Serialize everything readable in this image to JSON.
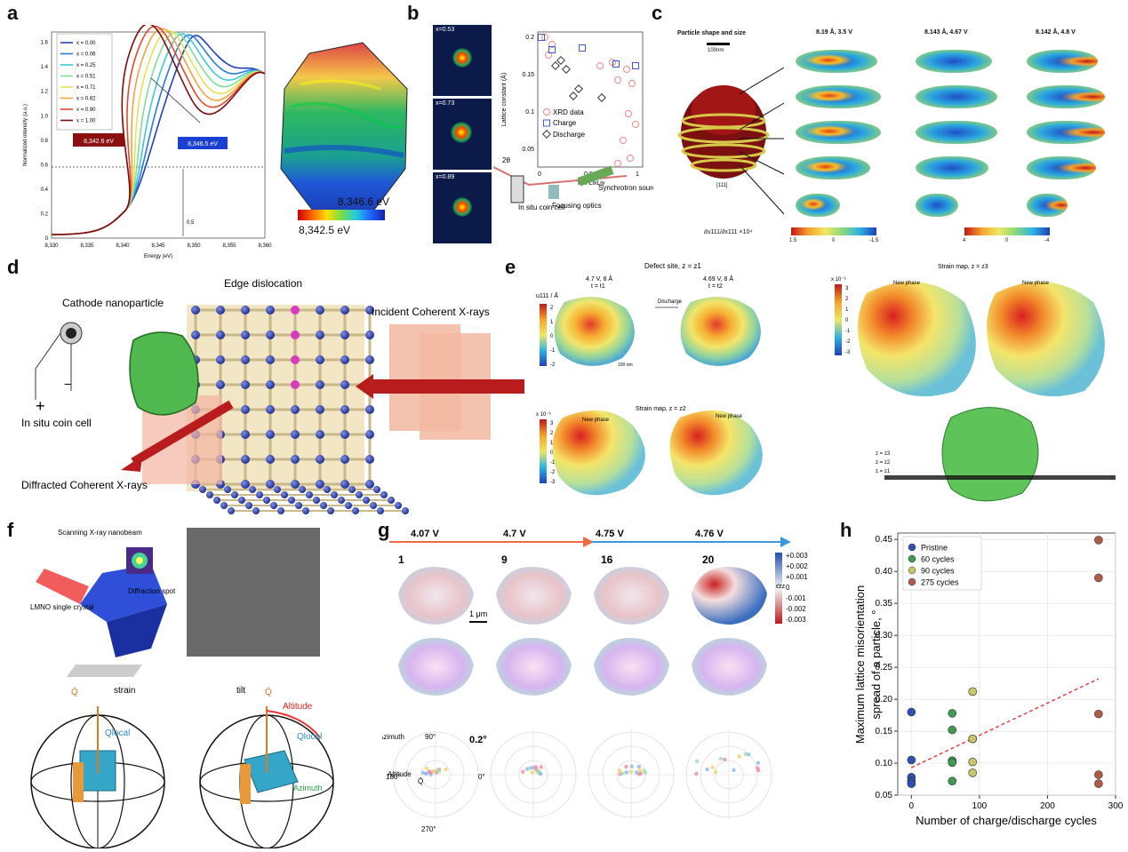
{
  "panel_labels": {
    "a": "a",
    "b": "b",
    "c": "c",
    "d": "d",
    "e": "e",
    "f": "f",
    "g": "g",
    "h": "h"
  },
  "panel_a": {
    "ylabel": "Normalized intensity (a.u.)",
    "xlabel": "Energy (eV)",
    "x_ticks": [
      "8,330",
      "8,335",
      "8,340",
      "8,345",
      "8,350",
      "8,355",
      "8,360"
    ],
    "y_ticks": [
      "0",
      "0.2",
      "0.4",
      "0.6",
      "0.8",
      "1.0",
      "1.2",
      "1.4",
      "1.6"
    ],
    "legend": [
      "x = 0.00",
      "x = 0.06",
      "x = 0.25",
      "x = 0.51",
      "x = 0.71",
      "x = 0.82",
      "x = 0.90",
      "x = 1.00"
    ],
    "legend_colors": [
      "#1f3fbf",
      "#2a7ad8",
      "#3ec8d8",
      "#7fdc9a",
      "#e8e05a",
      "#f2a33c",
      "#e0492c",
      "#7a0c12"
    ],
    "callout_left": "8,342.6 eV",
    "callout_right": "8,346.5 eV",
    "half_label": "0.5",
    "colorbar_max": "8,346.6 eV",
    "colorbar_min": "8,342.5 eV"
  },
  "panel_b": {
    "pattern_labels": [
      "x=0.53",
      "x=0.73",
      "x=0.89"
    ],
    "ylabel": "Lattice constant (Å)",
    "xlabel": "x in LixLiy",
    "y_ticks": [
      "0.05",
      "0.1",
      "0.15",
      "0.2"
    ],
    "x_ticks": [
      "0",
      "0.5",
      "1"
    ],
    "legend": [
      "XRD data",
      "Charge",
      "Discharge"
    ],
    "two_theta": "2θ",
    "coin_cell": "In situ coin cell",
    "focusing": "Focusing optics",
    "source": "Synchrotron source"
  },
  "panel_c": {
    "shape_title": "Particle shape and size",
    "scale": "100nm",
    "direction": "[111]",
    "col_titles": [
      "8.19 Å, 3.5 V",
      "8.143 Å, 4.67 V",
      "8.142 Å, 4.8 V"
    ],
    "cb_label": "∂u111/∂x111 ×10⁴",
    "cb1": [
      "1.5",
      "0",
      "-1.5"
    ],
    "cb2": [
      "4",
      "0",
      "-4"
    ]
  },
  "panel_d": {
    "cathode": "Cathode nanoparticle",
    "edge": "Edge dislocation",
    "incident": "Incident Coherent X-rays",
    "coin": "In situ coin cell",
    "diffracted": "Diffracted Coherent X-rays"
  },
  "panel_e": {
    "defect_title": "Defect site, z = z1",
    "cond1": "4.7 V, 8 Å",
    "cond1b": "t = t1",
    "cond2": "4.69 V, 8 Å",
    "cond2b": "t = t2",
    "discharge": "Discharge",
    "u_label": "u111 / Å",
    "u_ticks": [
      "2",
      "1",
      "0",
      "-1",
      "-2"
    ],
    "scale": "100 nm",
    "strain_title_1": "Strain map, z = z2",
    "strain_title_2": "Strain map, z = z3",
    "new_phase": "New phase",
    "cb_exp": "x 10⁻³",
    "cb_ticks": [
      "3",
      "2",
      "1",
      "0",
      "-1",
      "-2",
      "-3"
    ],
    "z_labels": [
      "z = z3",
      "z = z2",
      "z = z1"
    ]
  },
  "panel_f": {
    "scanning": "Scanning X-ray nanobeam",
    "diffraction": "Diffraction spot",
    "crystal": "LMNO single crystal",
    "q": "Q̄",
    "strain": "strain",
    "tilt": "tilt",
    "qlocal": "Qlocal",
    "altitude": "Altitude",
    "azimuth": "Azimuth"
  },
  "panel_g": {
    "voltages": [
      "4.07 V",
      "4.7 V",
      "4.75 V",
      "4.76 V"
    ],
    "cycles": [
      "1",
      "9",
      "16",
      "20"
    ],
    "scale": "1 μm",
    "cb_ticks": [
      "+0.003",
      "+0.002",
      "+0.001",
      "0",
      "-0.001",
      "-0.002",
      "-0.003"
    ],
    "cb_symbol": "ε̄zz",
    "polar_angles": [
      "90°",
      "180°",
      "0°",
      "270°"
    ],
    "polar_scale": "0.2°",
    "azimuth": "Azimuth",
    "altitude": "Altitude",
    "q": "Q̄"
  },
  "chart_data": {
    "type": "scatter",
    "xlabel": "Number of charge/discharge cycles",
    "ylabel": "Maximum lattice misorientation spread of a particle, °",
    "xlim": [
      -20,
      300
    ],
    "ylim": [
      0.05,
      0.46
    ],
    "x_ticks": [
      "0",
      "100",
      "200",
      "300"
    ],
    "y_ticks": [
      "0.05",
      "0.10",
      "0.15",
      "0.20",
      "0.25",
      "0.30",
      "0.35",
      "0.40",
      "0.45"
    ],
    "legend_position": "top-left",
    "series": [
      {
        "name": "Pristine",
        "color": "#2f4fb5",
        "x": [
          0,
          0,
          0,
          0,
          0
        ],
        "y": [
          0.18,
          0.105,
          0.078,
          0.072,
          0.068
        ]
      },
      {
        "name": "60 cycles",
        "color": "#3f9a55",
        "x": [
          60,
          60,
          60,
          60,
          60
        ],
        "y": [
          0.178,
          0.152,
          0.104,
          0.101,
          0.072
        ]
      },
      {
        "name": "90 cycles",
        "color": "#c8c66a",
        "x": [
          90,
          90,
          90,
          90,
          90
        ],
        "y": [
          0.212,
          0.138,
          0.138,
          0.102,
          0.085
        ]
      },
      {
        "name": "275 cycles",
        "color": "#b05a48",
        "x": [
          275,
          275,
          275,
          275,
          275
        ],
        "y": [
          0.449,
          0.39,
          0.177,
          0.082,
          0.068
        ]
      }
    ],
    "fit_line": {
      "x": [
        0,
        275
      ],
      "y": [
        0.093,
        0.232
      ],
      "color": "#e04040"
    }
  }
}
